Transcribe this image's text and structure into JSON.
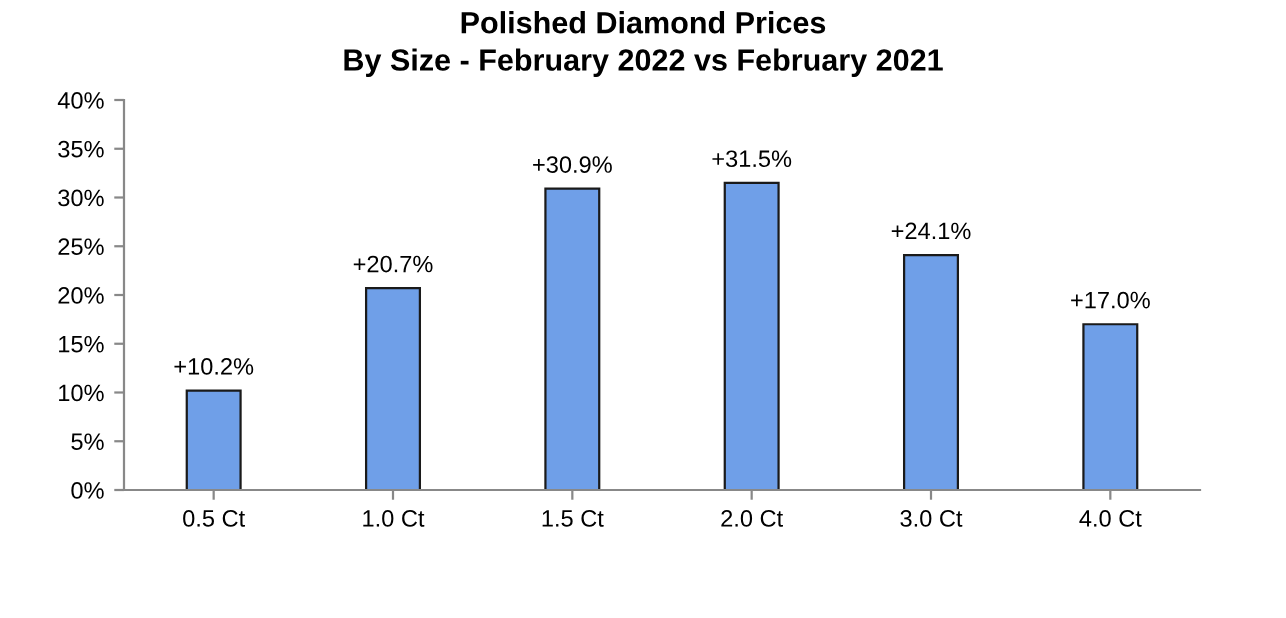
{
  "chart_data": {
    "type": "bar",
    "title": "Polished Diamond Prices\nBy Size - February 2022 vs February 2021",
    "categories": [
      "0.5 Ct",
      "1.0 Ct",
      "1.5 Ct",
      "2.0 Ct",
      "3.0 Ct",
      "4.0 Ct"
    ],
    "values": [
      10.2,
      20.7,
      30.9,
      31.5,
      24.1,
      17.0
    ],
    "value_labels": [
      "+10.2%",
      "+20.7%",
      "+30.9%",
      "+31.5%",
      "+24.1%",
      "+17.0%"
    ],
    "color": "#6f9fe8",
    "ylim": [
      0,
      40
    ],
    "yticks": [
      {
        "value": 0,
        "label": "0%"
      },
      {
        "value": 5,
        "label": "5%"
      },
      {
        "value": 10,
        "label": "10%"
      },
      {
        "value": 15,
        "label": "15%"
      },
      {
        "value": 20,
        "label": "20%"
      },
      {
        "value": 25,
        "label": "25%"
      },
      {
        "value": 30,
        "label": "30%"
      },
      {
        "value": 35,
        "label": "35%"
      },
      {
        "value": 40,
        "label": "40%"
      }
    ],
    "grid": false,
    "legend": false
  }
}
